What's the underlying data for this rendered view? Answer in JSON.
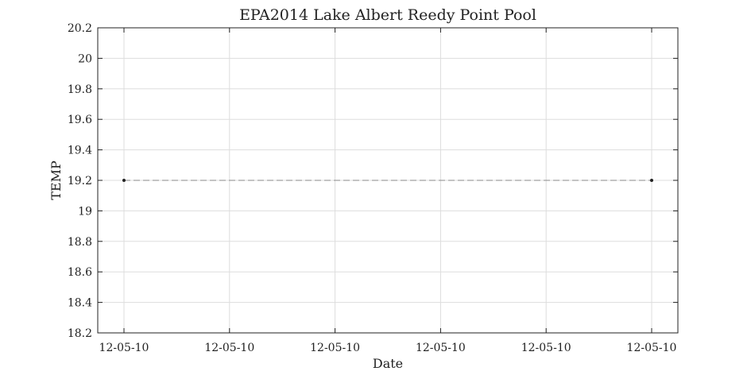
{
  "chart_data": {
    "type": "line",
    "title": "EPA2014 Lake Albert Reedy Point Pool",
    "xlabel": "Date",
    "ylabel": "TEMP",
    "x_tick_labels": [
      "12-05-10",
      "12-05-10",
      "12-05-10",
      "12-05-10",
      "12-05-10",
      "12-05-10"
    ],
    "y_ticks": [
      18.2,
      18.4,
      18.6,
      18.8,
      19,
      19.2,
      19.4,
      19.6,
      19.8,
      20,
      20.2
    ],
    "ylim": [
      18.2,
      20.2
    ],
    "grid": true,
    "series": [
      {
        "points": [
          {
            "x": "12-05-10",
            "y": 19.2
          },
          {
            "x": "12-05-10",
            "y": 19.2
          }
        ],
        "line_style": "dashed",
        "marker": "dot",
        "color": "#555555"
      }
    ]
  },
  "colors": {
    "grid": "#dddddd",
    "axis": "#222222",
    "line": "#888888",
    "marker": "#222222"
  }
}
